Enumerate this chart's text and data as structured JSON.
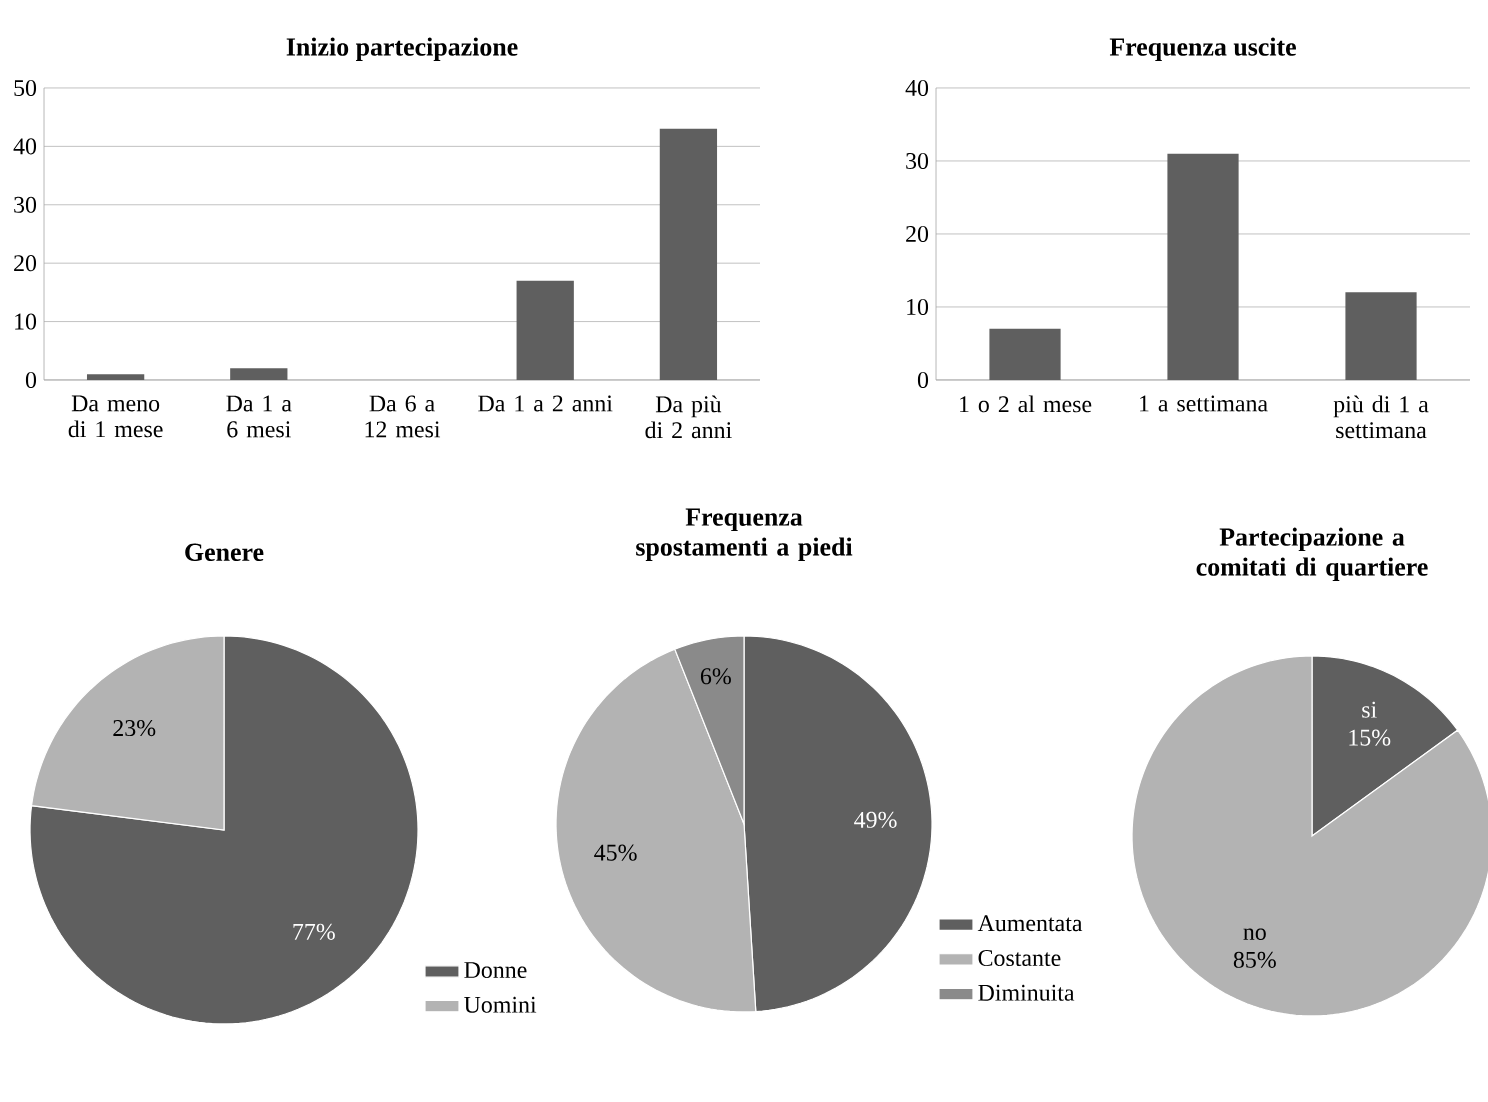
{
  "chart_data": [
    {
      "type": "bar",
      "title": "Inizio partecipazione",
      "categories": [
        "Da meno di 1 mese",
        "Da 1 a 6 mesi",
        "Da 6 a 12 mesi",
        "Da 1 a 2 anni",
        "Da più di 2 anni"
      ],
      "values": [
        1,
        2,
        0,
        17,
        43
      ],
      "color": "#5f5f5f",
      "ylim": [
        0,
        50
      ],
      "yticks": [
        0,
        10,
        20,
        30,
        40,
        50
      ],
      "grid": "y"
    },
    {
      "type": "bar",
      "title": "Frequenza uscite",
      "categories": [
        "1 o 2 al mese",
        "1 a settimana",
        "più di 1 a settimana"
      ],
      "values": [
        7,
        31,
        12
      ],
      "color": "#5f5f5f",
      "ylim": [
        0,
        40
      ],
      "yticks": [
        0,
        10,
        20,
        30,
        40
      ],
      "grid": "y"
    },
    {
      "type": "pie",
      "title": "Genere",
      "categories": [
        "Donne",
        "Uomini"
      ],
      "values": [
        77,
        23
      ],
      "colors": [
        "#5f5f5f",
        "#b3b3b3"
      ],
      "value_labels": [
        "77%",
        "23%"
      ],
      "legend": "bottom right"
    },
    {
      "type": "pie",
      "title": "Frequenza spostamenti a piedi",
      "categories": [
        "Aumentata",
        "Costante",
        "Diminuita"
      ],
      "values": [
        49,
        45,
        6
      ],
      "colors": [
        "#5f5f5f",
        "#b3b3b3",
        "#8a8a8a"
      ],
      "value_labels": [
        "49%",
        "45%",
        "6%"
      ],
      "legend": "bottom right"
    },
    {
      "type": "pie",
      "title": "Partecipazione a comitati di quartiere",
      "categories": [
        "si",
        "no"
      ],
      "values": [
        15,
        85
      ],
      "colors": [
        "#5f5f5f",
        "#b3b3b3"
      ],
      "value_labels": [
        "15%",
        "85%"
      ]
    }
  ]
}
